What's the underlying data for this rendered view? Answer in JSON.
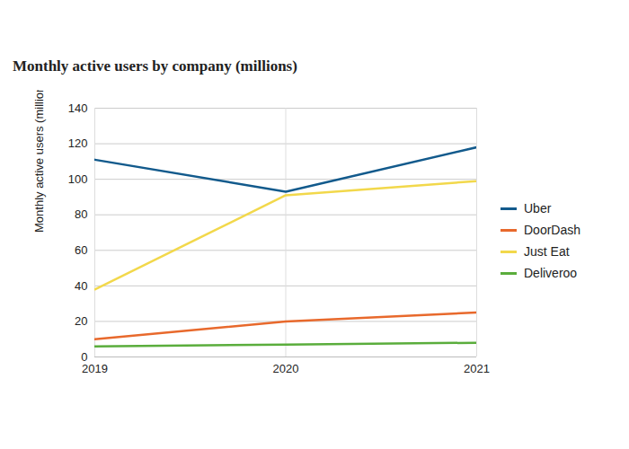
{
  "chart_data": {
    "type": "line",
    "title": "Monthly active users by company (millions)",
    "y_label": "Monthly active users (millions)",
    "x": [
      2019,
      2020,
      2021
    ],
    "series": [
      {
        "name": "Uber",
        "color": "#125a8c",
        "values": [
          111,
          93,
          118
        ]
      },
      {
        "name": "DoorDash",
        "color": "#e8692c",
        "values": [
          10,
          20,
          25
        ]
      },
      {
        "name": "Just Eat",
        "color": "#f2d84b",
        "values": [
          38,
          91,
          99
        ]
      },
      {
        "name": "Deliveroo",
        "color": "#5aad3c",
        "values": [
          6,
          7,
          8
        ]
      }
    ],
    "xlim": [
      2019,
      2021
    ],
    "xticks": [
      2019,
      2020,
      2021
    ],
    "ylim": [
      0,
      140
    ],
    "yticks": [
      0,
      20,
      40,
      60,
      80,
      100,
      120,
      140
    ],
    "grid": true,
    "legend": "right"
  }
}
